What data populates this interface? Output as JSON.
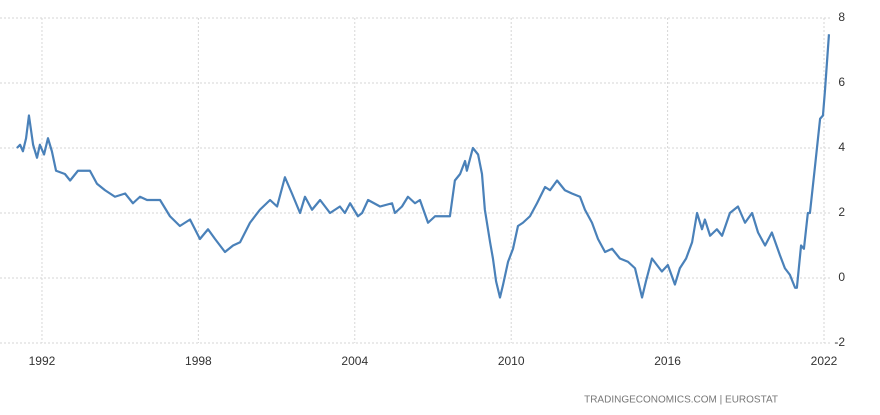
{
  "chart_data": {
    "type": "line",
    "source": "TRADINGECONOMICS.COM | EUROSTAT",
    "x": [
      1991.04,
      1991.16,
      1991.27,
      1991.39,
      1991.5,
      1991.66,
      1991.81,
      1991.92,
      1992.08,
      1992.23,
      1992.38,
      1992.54,
      1992.88,
      1993.08,
      1993.38,
      1993.84,
      1994.11,
      1994.42,
      1994.8,
      1995.19,
      1995.49,
      1995.76,
      1996.03,
      1996.34,
      1996.53,
      1996.91,
      1997.29,
      1997.68,
      1998.06,
      1998.37,
      1998.64,
      1999.02,
      1999.33,
      1999.6,
      1999.98,
      2000.36,
      2000.75,
      2001.02,
      2001.32,
      2001.59,
      2001.9,
      2002.09,
      2002.36,
      2002.67,
      2003.05,
      2003.43,
      2003.62,
      2003.82,
      2004.12,
      2004.28,
      2004.51,
      2004.97,
      2005.43,
      2005.54,
      2005.81,
      2006.04,
      2006.31,
      2006.5,
      2006.81,
      2007.08,
      2007.46,
      2007.65,
      2007.84,
      2008.04,
      2008.23,
      2008.3,
      2008.53,
      2008.73,
      2008.88,
      2008.99,
      2009.19,
      2009.3,
      2009.42,
      2009.57,
      2009.69,
      2009.88,
      2010.07,
      2010.26,
      2010.45,
      2010.72,
      2010.99,
      2011.3,
      2011.49,
      2011.76,
      2012.06,
      2012.33,
      2012.64,
      2012.83,
      2013.1,
      2013.33,
      2013.6,
      2013.87,
      2014.17,
      2014.48,
      2014.75,
      2015.02,
      2015.17,
      2015.4,
      2015.78,
      2016.01,
      2016.28,
      2016.47,
      2016.71,
      2016.94,
      2017.13,
      2017.32,
      2017.43,
      2017.63,
      2017.89,
      2018.09,
      2018.39,
      2018.7,
      2018.97,
      2019.24,
      2019.47,
      2019.74,
      2020.0,
      2020.31,
      2020.5,
      2020.69,
      2020.89,
      2020.96,
      2021.12,
      2021.23,
      2021.38,
      2021.46,
      2021.65,
      2021.85,
      2021.96,
      2022.04,
      2022.19
    ],
    "series": [
      {
        "color": "#4a81b9",
        "values": [
          4.0,
          4.1,
          3.9,
          4.3,
          5.0,
          4.1,
          3.7,
          4.1,
          3.8,
          4.3,
          3.9,
          3.3,
          3.2,
          3.0,
          3.3,
          3.3,
          2.9,
          2.7,
          2.5,
          2.6,
          2.3,
          2.5,
          2.4,
          2.4,
          2.4,
          1.9,
          1.6,
          1.8,
          1.2,
          1.5,
          1.2,
          0.8,
          1.0,
          1.1,
          1.7,
          2.1,
          2.4,
          2.2,
          3.1,
          2.6,
          2.0,
          2.5,
          2.1,
          2.4,
          2.0,
          2.2,
          2.0,
          2.3,
          1.9,
          2.0,
          2.4,
          2.2,
          2.3,
          2.0,
          2.2,
          2.5,
          2.3,
          2.4,
          1.7,
          1.9,
          1.9,
          1.9,
          3.0,
          3.2,
          3.6,
          3.3,
          4.0,
          3.8,
          3.2,
          2.1,
          1.1,
          0.6,
          -0.1,
          -0.6,
          -0.2,
          0.5,
          0.9,
          1.6,
          1.7,
          1.9,
          2.3,
          2.8,
          2.7,
          3.0,
          2.7,
          2.6,
          2.5,
          2.1,
          1.7,
          1.2,
          0.8,
          0.9,
          0.6,
          0.5,
          0.3,
          -0.6,
          -0.1,
          0.6,
          0.2,
          0.4,
          -0.2,
          0.3,
          0.6,
          1.1,
          2.0,
          1.5,
          1.8,
          1.3,
          1.5,
          1.3,
          2.0,
          2.2,
          1.7,
          2.0,
          1.4,
          1.0,
          1.4,
          0.7,
          0.3,
          0.1,
          -0.3,
          -0.3,
          1.0,
          0.9,
          2.0,
          2.0,
          3.4,
          4.9,
          5.0,
          5.8,
          7.5
        ]
      }
    ],
    "xlim": [
      1990.39,
      2022.23
    ],
    "xticks": [
      1992,
      1998,
      2004,
      2010,
      2016,
      2022
    ],
    "ylim": [
      -2,
      8
    ],
    "yticks": [
      -2,
      0,
      2,
      4,
      6,
      8
    ],
    "grid": true
  }
}
